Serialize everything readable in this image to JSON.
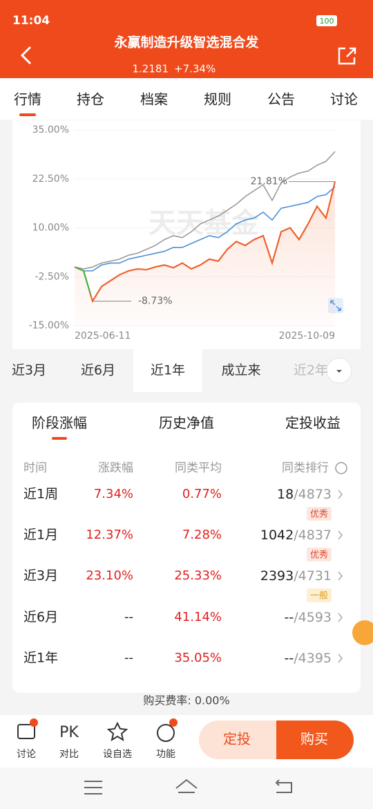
{
  "status_bar": {
    "time": "11:04",
    "battery": "100"
  },
  "header": {
    "title": "永赢制造升级智选混合发",
    "nav": "1.2181",
    "change": "+7.34%"
  },
  "tabs": [
    "行情",
    "持仓",
    "档案",
    "规则",
    "公告",
    "讨论"
  ],
  "chart_data": {
    "type": "line",
    "watermark": "天天基金",
    "x_labels": [
      "2025-06-11",
      "2025-10-09"
    ],
    "ylim": [
      -15,
      35
    ],
    "yticks": [
      {
        "value": 35,
        "label": "35.00%"
      },
      {
        "value": 22.5,
        "label": "22.50%"
      },
      {
        "value": 10,
        "label": "10.00%"
      },
      {
        "value": -2.5,
        "label": "-2.50%"
      },
      {
        "value": -15,
        "label": "-15.00%"
      }
    ],
    "series": [
      {
        "color": "#9a9a9a",
        "values": [
          0,
          -0.5,
          0,
          1,
          1.5,
          2,
          3,
          3.5,
          4.5,
          5.5,
          7,
          8,
          7.5,
          9,
          11,
          12,
          13,
          14.5,
          16,
          18,
          19.5,
          21,
          17,
          21.5,
          23,
          24,
          24.5,
          26,
          27,
          29.5
        ]
      },
      {
        "color": "#4a8fd8",
        "values": [
          0,
          -1,
          -1,
          0.5,
          1,
          1,
          2,
          2.5,
          3,
          3.5,
          4,
          5,
          5,
          6,
          7,
          8,
          7.5,
          9,
          11,
          12,
          12.5,
          14,
          12,
          15,
          15.5,
          16,
          16.5,
          18,
          18.5,
          20.5
        ]
      },
      {
        "color": "#f0602a",
        "values": [
          0,
          -1,
          -8.73,
          -5,
          -3.5,
          -2,
          -1,
          -0.5,
          -0.7,
          0,
          0.5,
          -0.2,
          1,
          -0.5,
          0.5,
          2,
          1.5,
          4.5,
          6.5,
          5.5,
          7,
          8,
          1,
          9,
          10,
          7,
          11,
          15.5,
          12.5,
          21.81
        ]
      }
    ],
    "max_label": {
      "value": 21.81,
      "label": "21.81%"
    },
    "min_label": {
      "value": -8.73,
      "label": "-8.73%"
    }
  },
  "ranges": [
    "近3月",
    "近6月",
    "近1年",
    "成立来",
    "近2年"
  ],
  "table": {
    "tabs": [
      "阶段涨幅",
      "历史净值",
      "定投收益"
    ],
    "columns": [
      "时间",
      "涨跌幅",
      "同类平均",
      "同类排行"
    ],
    "rows": [
      {
        "period": "近1周",
        "change": "7.34%",
        "average": "0.77%",
        "rank": "18",
        "total": "/4873",
        "badge": {
          "text": "优秀",
          "color": "#e0482a",
          "bg": "#fde6e0"
        }
      },
      {
        "period": "近1月",
        "change": "12.37%",
        "average": "7.28%",
        "rank": "1042",
        "total": "/4837",
        "badge": {
          "text": "优秀",
          "color": "#e0482a",
          "bg": "#fde6e0"
        }
      },
      {
        "period": "近3月",
        "change": "23.10%",
        "average": "25.33%",
        "rank": "2393",
        "total": "/4731",
        "badge": {
          "text": "一般",
          "color": "#dd9a1c",
          "bg": "#fdf0d2"
        }
      },
      {
        "period": "近6月",
        "change": "--",
        "average": "41.14%",
        "rank": "--",
        "total": "/4593"
      },
      {
        "period": "近1年",
        "change": "--",
        "average": "35.05%",
        "rank": "--",
        "total": "/4395"
      }
    ]
  },
  "fee": "购买费率: 0.00%",
  "toolbar": {
    "pk_icon": "PK",
    "items": [
      "讨论",
      "对比",
      "设自选",
      "功能"
    ],
    "buttons": [
      "定投",
      "购买"
    ]
  }
}
